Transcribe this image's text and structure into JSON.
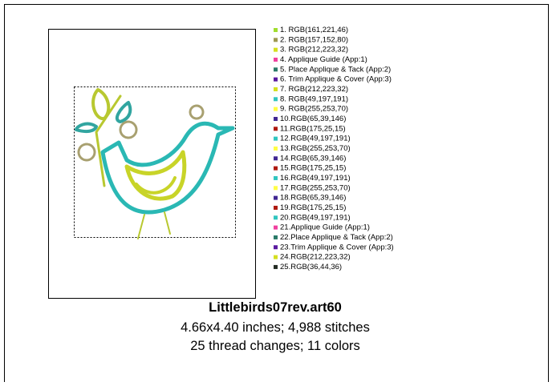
{
  "threads": [
    {
      "label": "1.  RGB(161,221,46)",
      "color": "#a1dd2e"
    },
    {
      "label": "2.  RGB(157,152,80)",
      "color": "#9d9850"
    },
    {
      "label": "3.  RGB(212,223,32)",
      "color": "#d4df20"
    },
    {
      "label": "4.  Applique Guide (App:1)",
      "color": "#f040a0"
    },
    {
      "label": "5.  Place Applique & Tack (App:2)",
      "color": "#2a7a68"
    },
    {
      "label": "6.  Trim Applique & Cover (App:3)",
      "color": "#5a1aa0"
    },
    {
      "label": "7.  RGB(212,223,32)",
      "color": "#d4df20"
    },
    {
      "label": "8.  RGB(49,197,191)",
      "color": "#31c5bf"
    },
    {
      "label": "9.  RGB(255,253,70)",
      "color": "#fffd46"
    },
    {
      "label": "10.RGB(65,39,146)",
      "color": "#412792"
    },
    {
      "label": "11.RGB(175,25,15)",
      "color": "#af190f"
    },
    {
      "label": "12.RGB(49,197,191)",
      "color": "#31c5bf"
    },
    {
      "label": "13.RGB(255,253,70)",
      "color": "#fffd46"
    },
    {
      "label": "14.RGB(65,39,146)",
      "color": "#412792"
    },
    {
      "label": "15.RGB(175,25,15)",
      "color": "#af190f"
    },
    {
      "label": "16.RGB(49,197,191)",
      "color": "#31c5bf"
    },
    {
      "label": "17.RGB(255,253,70)",
      "color": "#fffd46"
    },
    {
      "label": "18.RGB(65,39,146)",
      "color": "#412792"
    },
    {
      "label": "19.RGB(175,25,15)",
      "color": "#af190f"
    },
    {
      "label": "20.RGB(49,197,191)",
      "color": "#31c5bf"
    },
    {
      "label": "21.Applique Guide (App:1)",
      "color": "#f040a0"
    },
    {
      "label": "22.Place Applique & Tack (App:2)",
      "color": "#2a7a68"
    },
    {
      "label": "23.Trim Applique & Cover (App:3)",
      "color": "#5a1aa0"
    },
    {
      "label": "24.RGB(212,223,32)",
      "color": "#d4df20"
    },
    {
      "label": "25.RGB(36,44,36)",
      "color": "#242c24"
    }
  ],
  "design": {
    "title": "Littlebirds07rev.art60",
    "size_line": "4.66x4.40 inches; 4,988 stitches",
    "count_line": "25 thread changes; 11 colors"
  }
}
